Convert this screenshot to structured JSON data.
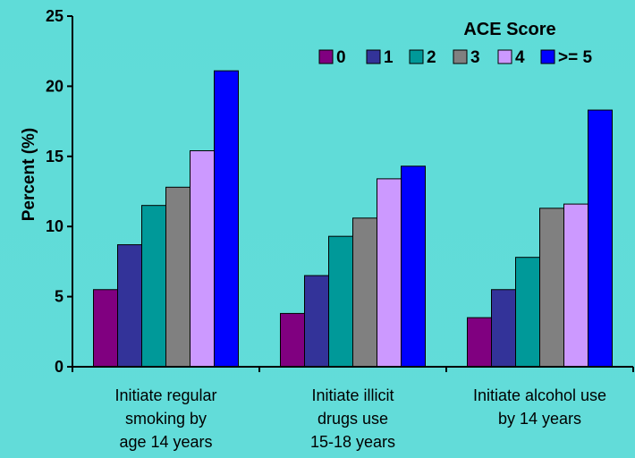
{
  "chart_data": {
    "type": "bar",
    "title": "",
    "xlabel": "",
    "ylabel": "Percent (%)",
    "ylim": [
      0,
      25
    ],
    "yticks": [
      "0",
      "5",
      "10",
      "15",
      "20",
      "25"
    ],
    "grid": false,
    "legend_title": "ACE Score",
    "legend_position": "top-right",
    "categories": [
      [
        "Initiate regular",
        "smoking by",
        "age 14 years"
      ],
      [
        "Initiate illicit",
        "drugs use",
        "15-18 years"
      ],
      [
        "Initiate alcohol use",
        "by 14 years"
      ]
    ],
    "series": [
      {
        "name": "0",
        "color": "#800080",
        "values": [
          5.5,
          3.8,
          3.5
        ]
      },
      {
        "name": "1",
        "color": "#333399",
        "values": [
          8.7,
          6.5,
          5.5
        ]
      },
      {
        "name": "2",
        "color": "#009999",
        "values": [
          11.5,
          9.3,
          7.8
        ]
      },
      {
        "name": "3",
        "color": "#808080",
        "values": [
          12.8,
          10.6,
          11.3
        ]
      },
      {
        "name": "4",
        "color": "#cc99ff",
        "values": [
          15.4,
          13.4,
          11.6
        ]
      },
      {
        "name": ">= 5",
        "color": "#0000ff",
        "values": [
          21.1,
          14.3,
          18.3
        ]
      }
    ]
  }
}
